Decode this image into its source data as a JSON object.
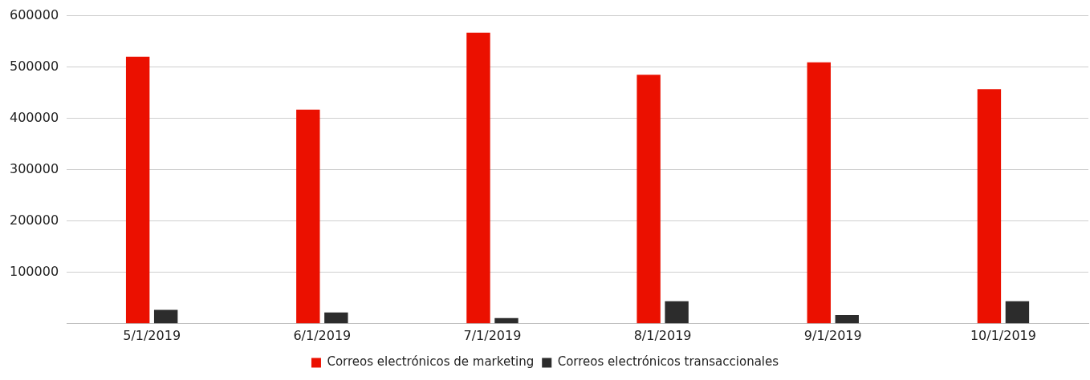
{
  "chart_data": {
    "type": "bar",
    "categories": [
      "5/1/2019",
      "6/1/2019",
      "7/1/2019",
      "8/1/2019",
      "9/1/2019",
      "10/1/2019"
    ],
    "series": [
      {
        "name": "Correos electrónicos de marketing",
        "color": "#eb1000",
        "values": [
          520000,
          417000,
          567000,
          485000,
          509000,
          457000
        ]
      },
      {
        "name": "Correos electrónicos transaccionales",
        "color": "#2c2c2c",
        "values": [
          27000,
          22000,
          11000,
          44000,
          17000,
          44000
        ]
      }
    ],
    "ylim": [
      0,
      600000
    ],
    "yticks": [
      {
        "value": 0,
        "label": null
      },
      100000,
      200000,
      300000,
      400000,
      500000,
      600000
    ],
    "grid": "y",
    "legend": "bottom"
  }
}
